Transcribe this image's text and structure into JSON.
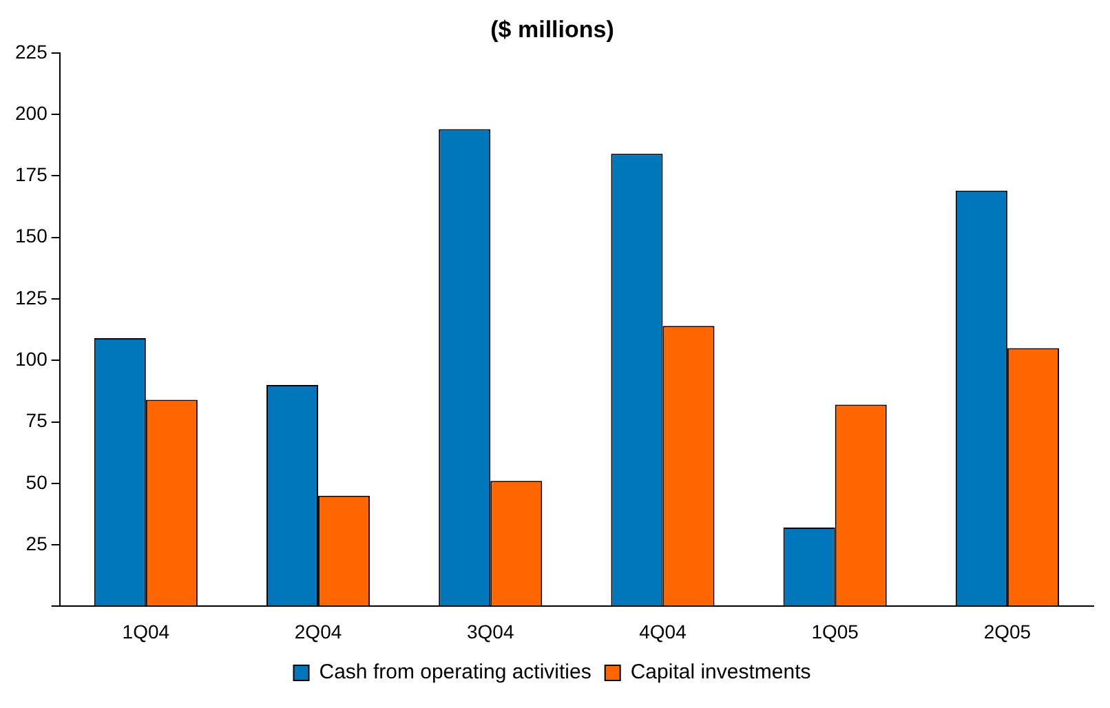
{
  "chart_data": {
    "type": "bar",
    "title": "($ millions)",
    "categories": [
      "1Q04",
      "2Q04",
      "3Q04",
      "4Q04",
      "1Q05",
      "2Q05"
    ],
    "series": [
      {
        "name": "Cash from operating activities",
        "color": "#0077bb",
        "values": [
          109,
          90,
          194,
          184,
          32,
          169
        ]
      },
      {
        "name": "Capital investments",
        "color": "#ff6600",
        "values": [
          84,
          45,
          51,
          114,
          82,
          105
        ]
      }
    ],
    "ylim": [
      0,
      225
    ],
    "yticks": [
      {
        "value": 0,
        "label": null
      },
      25,
      50,
      75,
      100,
      125,
      150,
      175,
      200,
      225
    ],
    "grid": false,
    "legend": "bottom"
  }
}
